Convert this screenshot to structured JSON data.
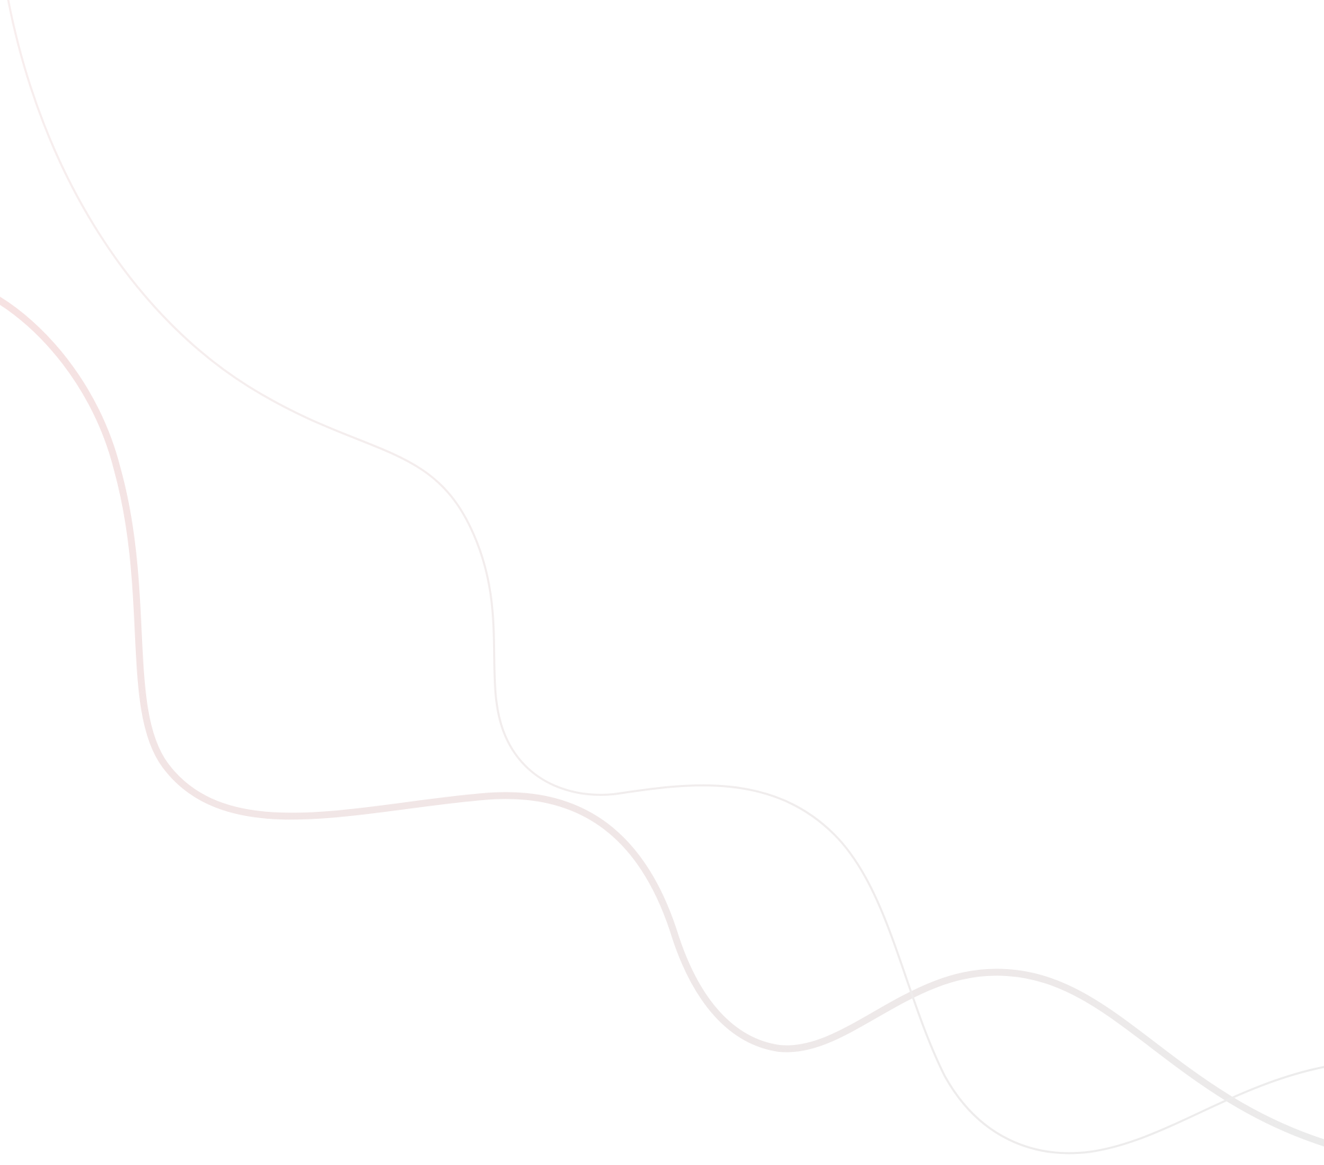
{
  "background": {
    "color": "#ffffff",
    "decorative_lines": [
      {
        "name": "thick-wave-line",
        "gradient_start": "#f6e2e2",
        "gradient_end": "#ebebeb"
      },
      {
        "name": "thin-wave-line",
        "gradient_start": "#f8eeee",
        "gradient_end": "#ececec"
      }
    ]
  }
}
